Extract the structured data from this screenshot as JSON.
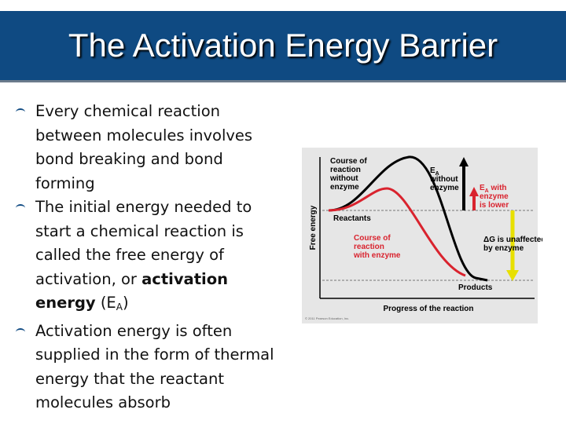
{
  "header": {
    "title": "The Activation Energy Barrier"
  },
  "bullets": [
    {
      "parts": [
        {
          "text": "Every chemical reaction between molecules involves bond breaking and bond forming"
        }
      ]
    },
    {
      "parts": [
        {
          "text": "The initial energy needed to start a chemical reaction is called the free energy of activation, or "
        },
        {
          "bold": "activation energy"
        },
        {
          "text": " (E"
        },
        {
          "sub": "A"
        },
        {
          "text": ")"
        }
      ]
    },
    {
      "parts": [
        {
          "text": "Activation energy is often supplied in the form of thermal energy that the reactant molecules absorb"
        }
      ]
    }
  ],
  "figure": {
    "y_axis": "Free energy",
    "x_axis": "Progress of the reaction",
    "no_enzyme_curve": [
      "Course of",
      "reaction",
      "without",
      "enzyme"
    ],
    "ea_without": {
      "e": "E",
      "sub": "A",
      "lines": [
        "without",
        "enzyme"
      ]
    },
    "ea_with": {
      "e": "E",
      "sub": "A",
      "first": " with",
      "lines": [
        "enzyme",
        "is lower"
      ]
    },
    "reactants": "Reactants",
    "enzyme_curve": [
      "Course of",
      "reaction",
      "with enzyme"
    ],
    "delta_g": [
      "ΔG is unaffected",
      "by enzyme"
    ],
    "products": "Products",
    "credit": "© 2011 Pearson Education, Inc."
  }
}
